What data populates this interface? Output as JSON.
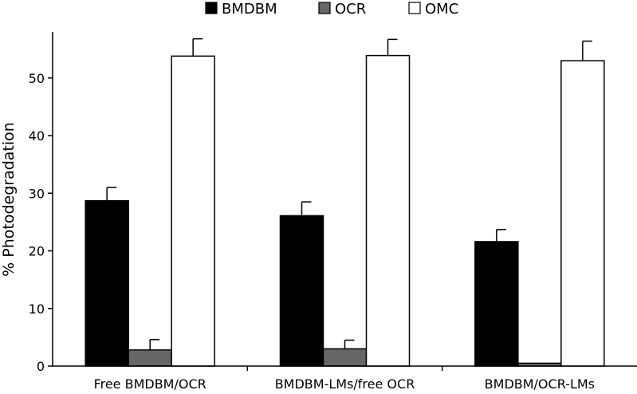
{
  "chart_data": {
    "type": "bar",
    "title": "",
    "xlabel": "",
    "ylabel": "% Photodegradation",
    "ylim": [
      0,
      58
    ],
    "yticks": [
      0,
      10,
      20,
      30,
      40,
      50
    ],
    "grid": false,
    "legend_position": "top",
    "categories": [
      "Free BMDBM/OCR",
      "BMDBM-LMs/free OCR",
      "BMDBM/OCR-LMs"
    ],
    "series": [
      {
        "name": "BMDBM",
        "color": "#000000",
        "values": [
          28.7,
          26.1,
          21.6
        ],
        "errors": [
          2.3,
          2.4,
          2.1
        ]
      },
      {
        "name": "OCR",
        "color": "#666666",
        "values": [
          2.8,
          3.0,
          0.5
        ],
        "errors": [
          1.8,
          1.5,
          0.0
        ]
      },
      {
        "name": "OMC",
        "color": "#ffffff",
        "values": [
          53.8,
          53.9,
          53.0
        ],
        "errors": [
          3.0,
          2.8,
          3.4
        ]
      }
    ]
  }
}
